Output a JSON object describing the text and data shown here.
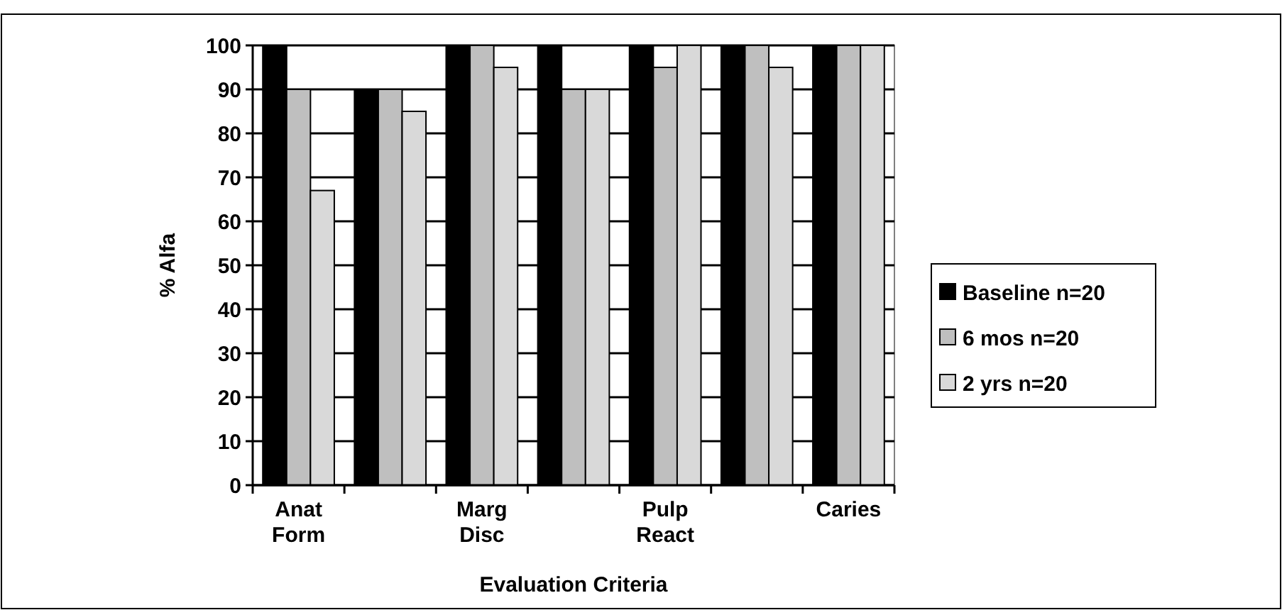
{
  "chart_data": {
    "type": "bar",
    "xlabel": "Evaluation Criteria",
    "ylabel": "% Alfa",
    "categories": [
      "Anat Form",
      null,
      "Marg Disc",
      null,
      "Pulp React",
      null,
      "Caries"
    ],
    "series": [
      {
        "name": "Baseline n=20",
        "color": "#000000",
        "values": [
          100,
          90,
          100,
          100,
          100,
          100,
          100
        ]
      },
      {
        "name": "6 mos n=20",
        "color": "#bfbfbf",
        "values": [
          90,
          90,
          100,
          90,
          95,
          100,
          100
        ]
      },
      {
        "name": "2 yrs n=20",
        "color": "#d9d9d9",
        "values": [
          67,
          85,
          95,
          90,
          100,
          95,
          100
        ]
      }
    ],
    "ylim": [
      0,
      100
    ],
    "yticks": [
      0,
      10,
      20,
      30,
      40,
      50,
      60,
      70,
      80,
      90,
      100
    ],
    "grid": "y",
    "legend": "right"
  }
}
